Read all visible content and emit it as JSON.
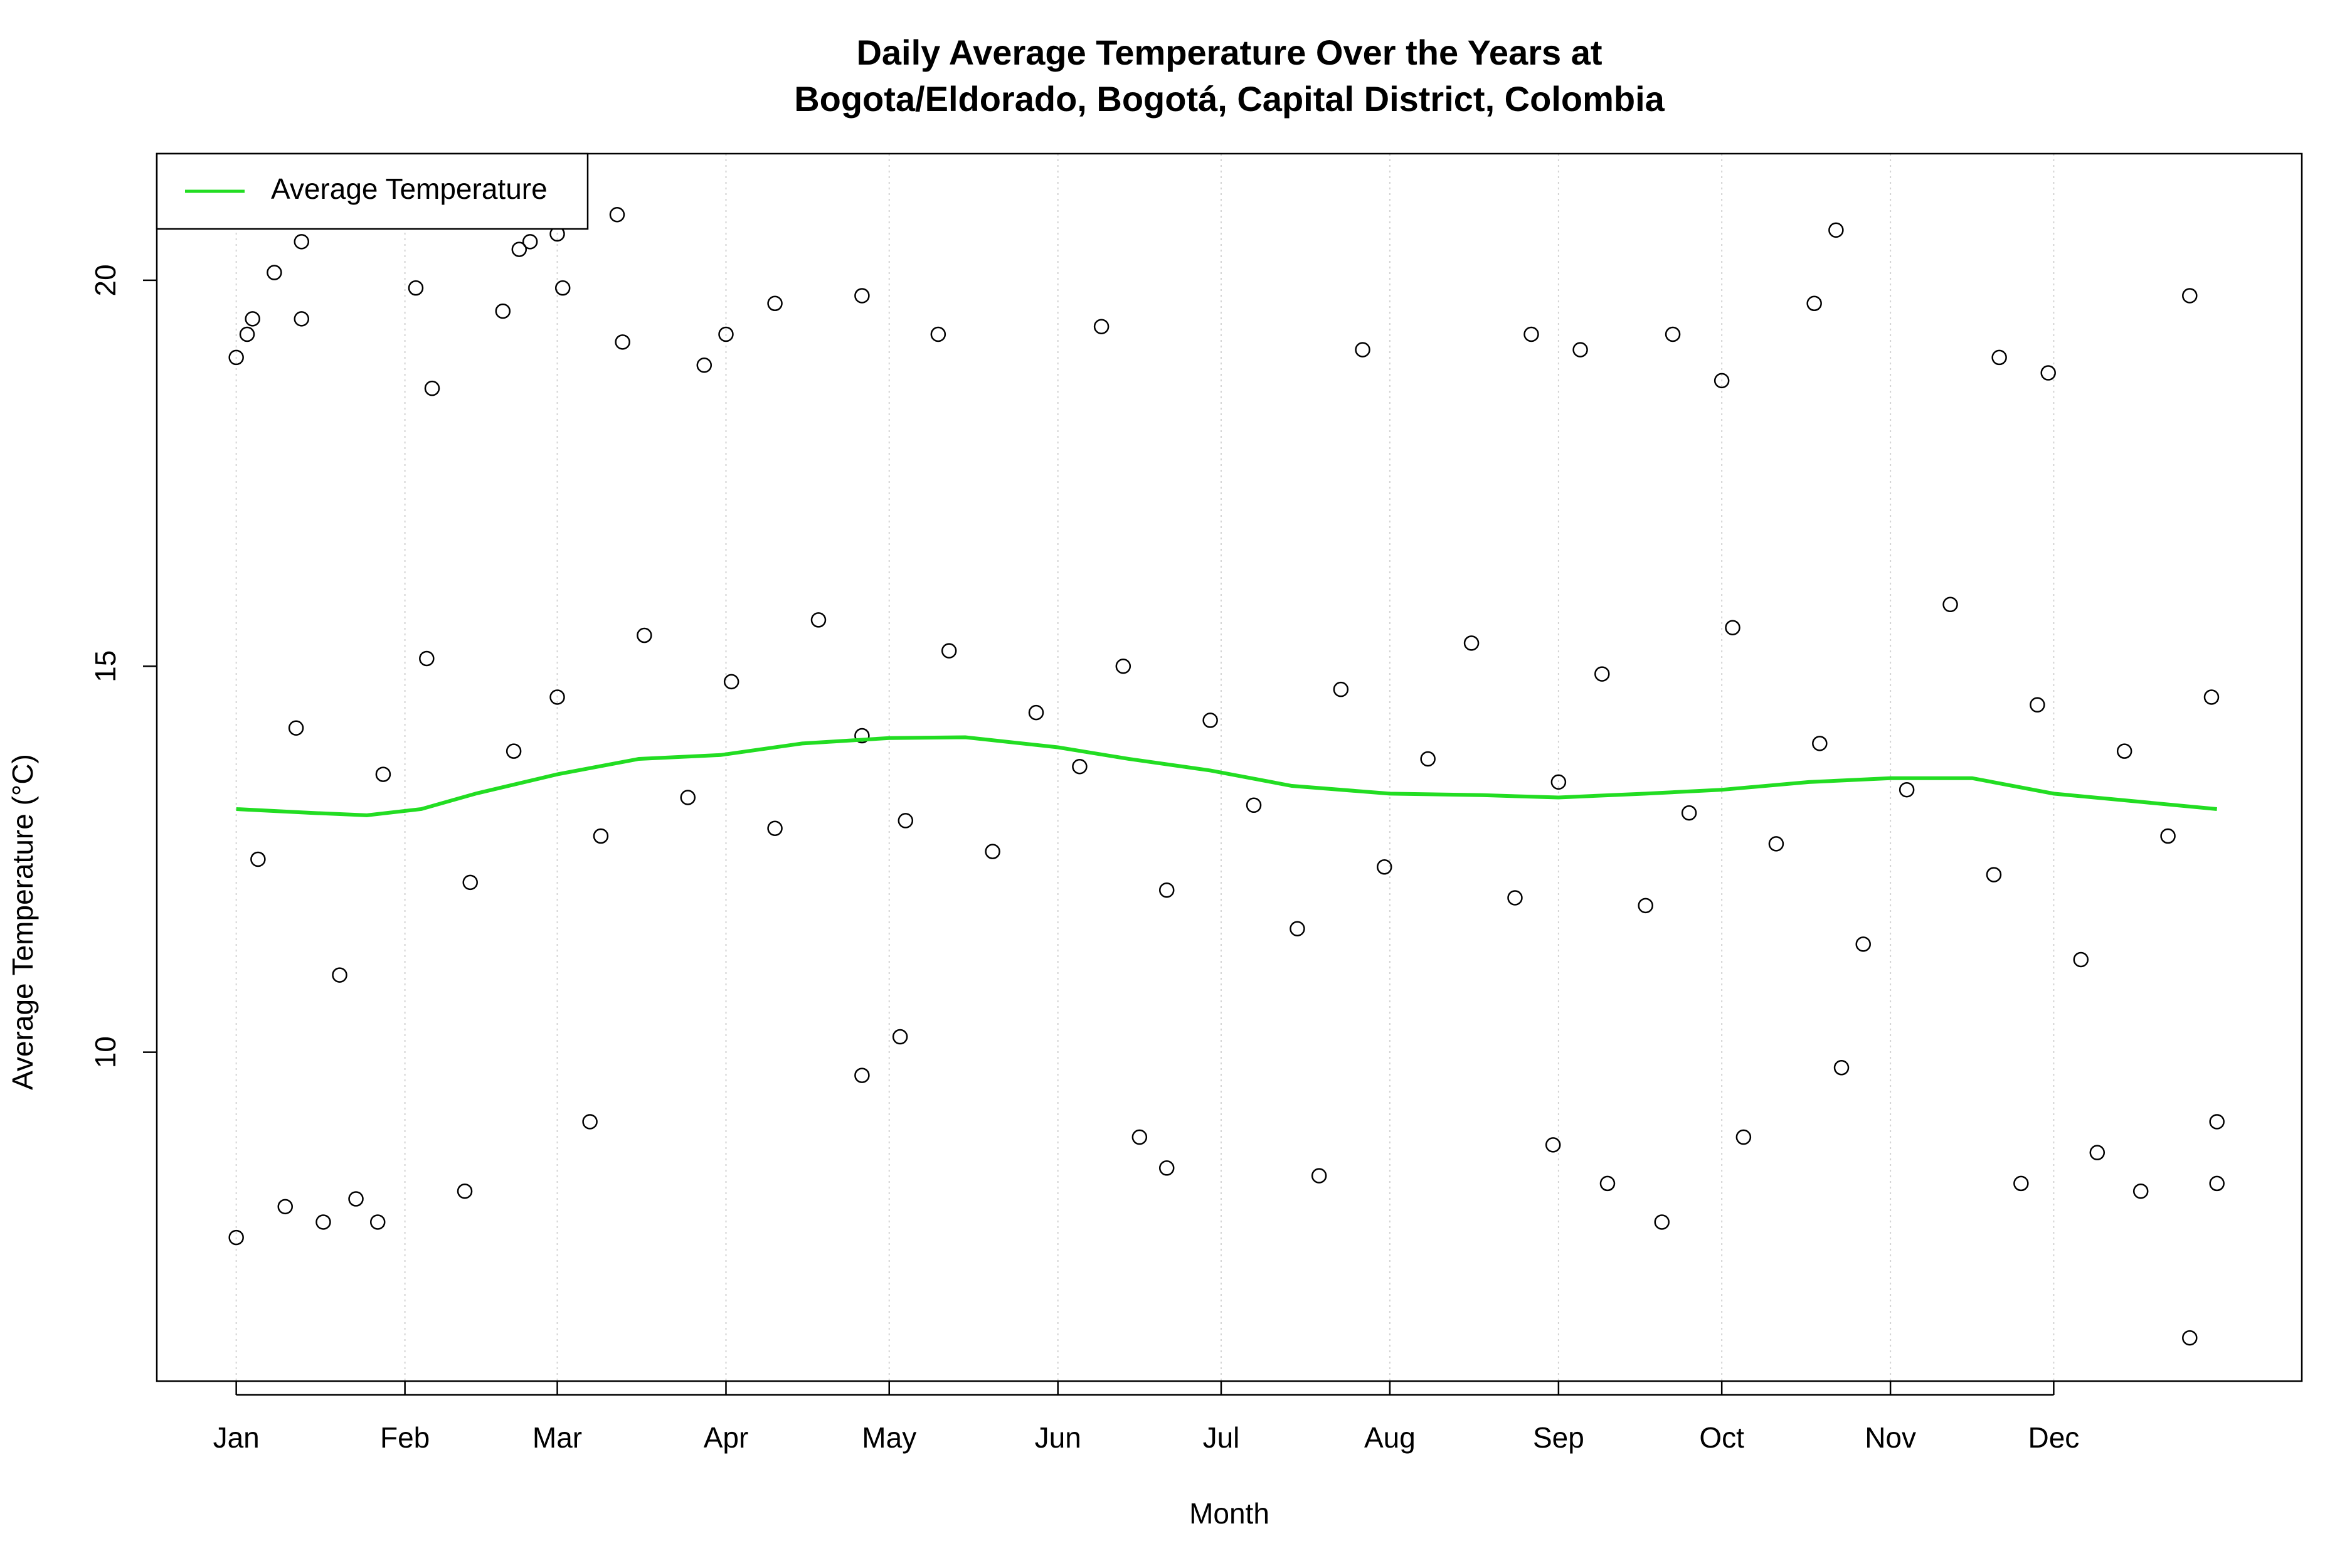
{
  "chart_data": {
    "type": "scatter",
    "title": [
      "Daily Average Temperature Over the Years at",
      "Bogota/Eldorado, Bogotá, Capital District, Colombia"
    ],
    "x_label": "Month",
    "y_label": "Average Temperature (°C)",
    "xlim": [
      -13.6,
      380.6
    ],
    "ylim": [
      5.74,
      21.64
    ],
    "xticks": [
      {
        "value": 1,
        "label": "Jan"
      },
      {
        "value": 32,
        "label": "Feb"
      },
      {
        "value": 60,
        "label": "Mar"
      },
      {
        "value": 91,
        "label": "Apr"
      },
      {
        "value": 121,
        "label": "May"
      },
      {
        "value": 152,
        "label": "Jun"
      },
      {
        "value": 182,
        "label": "Jul"
      },
      {
        "value": 213,
        "label": "Aug"
      },
      {
        "value": 244,
        "label": "Sep"
      },
      {
        "value": 274,
        "label": "Oct"
      },
      {
        "value": 305,
        "label": "Nov"
      },
      {
        "value": 335,
        "label": "Dec"
      }
    ],
    "yticks": [
      10,
      15,
      20
    ],
    "grid": true,
    "legend": "topleft",
    "points": {
      "color": "#000000",
      "x": [
        1,
        1,
        3,
        4,
        8,
        13,
        13,
        10,
        17,
        23,
        27,
        34,
        37,
        43,
        50,
        53,
        55,
        60,
        61,
        66,
        71,
        72,
        87,
        91,
        100,
        116,
        116,
        123,
        130,
        160,
        167,
        172,
        200,
        208,
        239,
        243,
        248,
        253,
        263,
        265,
        274,
        278,
        291,
        295,
        296,
        325,
        329,
        334,
        343,
        351,
        360,
        360,
        365,
        365,
        5,
        12,
        20,
        28,
        36,
        44,
        52,
        60,
        68,
        76,
        84,
        92,
        100,
        108,
        116,
        124,
        132,
        140,
        148,
        156,
        164,
        172,
        180,
        188,
        196,
        204,
        212,
        220,
        228,
        236,
        244,
        252,
        260,
        268,
        276,
        284,
        292,
        300,
        308,
        316,
        324,
        332,
        340,
        348,
        356,
        364
      ],
      "y": [
        7.6,
        19.0,
        19.3,
        19.5,
        20.1,
        20.5,
        19.5,
        8.0,
        7.8,
        8.1,
        7.8,
        19.9,
        18.6,
        8.2,
        19.6,
        20.4,
        20.5,
        20.6,
        19.9,
        9.1,
        20.85,
        19.2,
        18.9,
        19.3,
        19.7,
        19.8,
        9.7,
        10.2,
        19.3,
        19.4,
        8.9,
        8.5,
        8.4,
        19.1,
        19.3,
        8.8,
        19.1,
        8.3,
        7.8,
        19.3,
        18.7,
        8.9,
        19.7,
        20.65,
        9.8,
        19.0,
        8.3,
        18.8,
        8.7,
        8.2,
        19.8,
        6.3,
        8.3,
        9.1,
        12.5,
        14.2,
        11.0,
        13.6,
        15.1,
        12.2,
        13.9,
        14.6,
        12.8,
        15.4,
        13.3,
        14.8,
        12.9,
        15.6,
        14.1,
        13.0,
        15.2,
        12.6,
        14.4,
        13.7,
        15.0,
        12.1,
        14.3,
        13.2,
        11.6,
        14.7,
        12.4,
        13.8,
        15.3,
        12.0,
        13.5,
        14.9,
        11.9,
        13.1,
        15.5,
        12.7,
        14.0,
        11.4,
        13.4,
        15.8,
        12.3,
        14.5,
        11.2,
        13.9,
        12.8,
        14.6
      ]
    },
    "series": [
      {
        "name": "Average Temperature",
        "color": "#22dd22",
        "x": [
          1,
          15,
          25,
          35,
          45,
          60,
          75,
          90,
          105,
          121,
          135,
          152,
          165,
          180,
          195,
          213,
          230,
          244,
          260,
          274,
          290,
          305,
          320,
          335,
          350,
          365
        ],
        "values": [
          13.15,
          13.1,
          13.07,
          13.15,
          13.35,
          13.6,
          13.8,
          13.85,
          14.0,
          14.07,
          14.08,
          13.95,
          13.8,
          13.65,
          13.45,
          13.35,
          13.33,
          13.3,
          13.35,
          13.4,
          13.5,
          13.55,
          13.55,
          13.35,
          13.25,
          13.15
        ]
      }
    ]
  }
}
